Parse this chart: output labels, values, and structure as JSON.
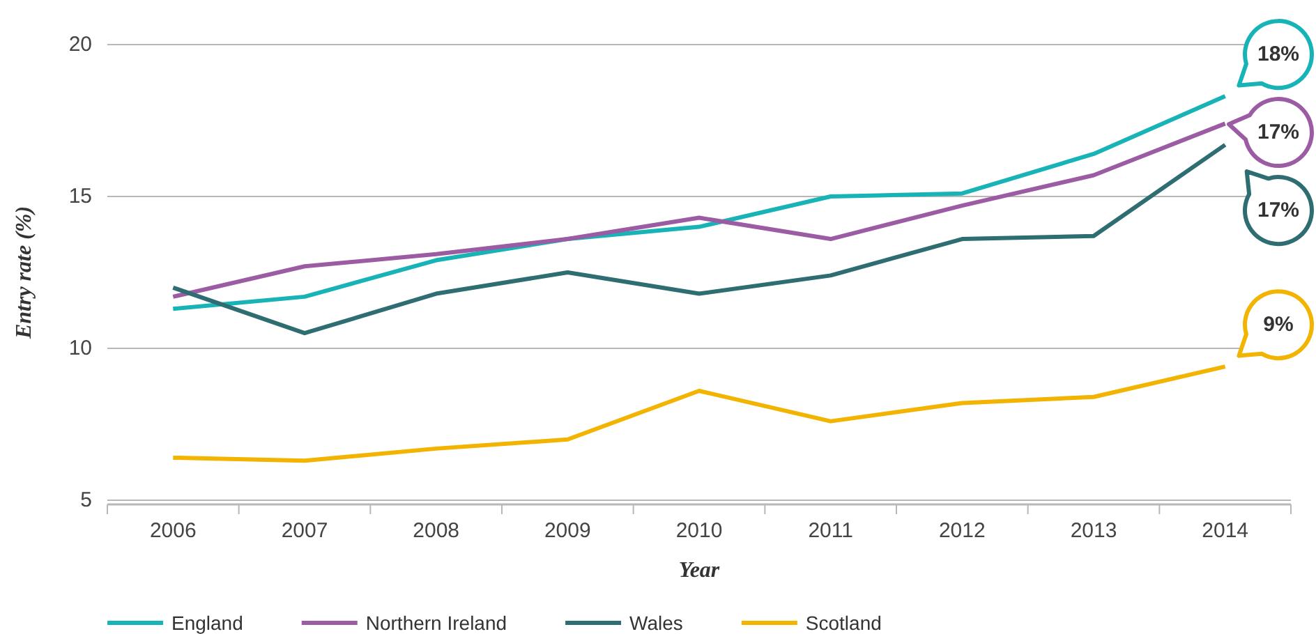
{
  "chart_data": {
    "type": "line",
    "xlabel": "Year",
    "ylabel": "Entry rate (%)",
    "categories": [
      "2006",
      "2007",
      "2008",
      "2009",
      "2010",
      "2011",
      "2012",
      "2013",
      "2014"
    ],
    "ylim": [
      5,
      20
    ],
    "yticks": [
      5,
      10,
      15,
      20
    ],
    "grid": "y",
    "legend": "bottom",
    "series": [
      {
        "name": "England",
        "color": "#17b3b6",
        "values": [
          11.3,
          11.7,
          12.9,
          13.6,
          14.0,
          15.0,
          15.1,
          16.4,
          18.3
        ],
        "value_labels": [
          null,
          null,
          null,
          null,
          null,
          null,
          null,
          null,
          "18%"
        ]
      },
      {
        "name": "Northern Ireland",
        "color": "#9b5ca4",
        "values": [
          11.7,
          12.7,
          13.1,
          13.6,
          14.3,
          13.6,
          14.7,
          15.7,
          17.4
        ],
        "value_labels": [
          null,
          null,
          null,
          null,
          null,
          null,
          null,
          null,
          "17%"
        ]
      },
      {
        "name": "Wales",
        "color": "#2e6d72",
        "values": [
          12.0,
          10.5,
          11.8,
          12.5,
          11.8,
          12.4,
          13.6,
          13.7,
          16.7
        ],
        "value_labels": [
          null,
          null,
          null,
          null,
          null,
          null,
          null,
          null,
          "17%"
        ]
      },
      {
        "name": "Scotland",
        "color": "#f2b400",
        "values": [
          6.4,
          6.3,
          6.7,
          7.0,
          8.6,
          7.6,
          8.2,
          8.4,
          9.4
        ],
        "value_labels": [
          null,
          null,
          null,
          null,
          null,
          null,
          null,
          null,
          "9%"
        ]
      }
    ]
  }
}
